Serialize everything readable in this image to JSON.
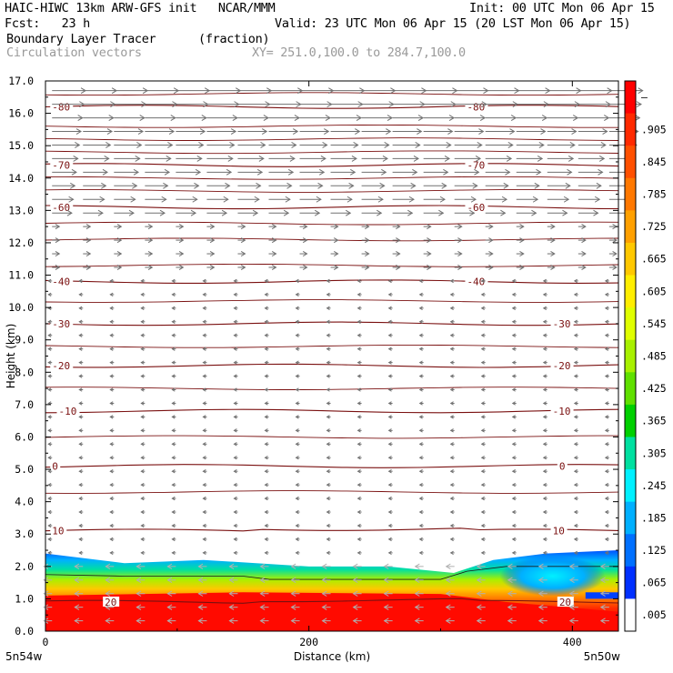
{
  "header": {
    "title": "HAIC-HIWC 13km ARW-GFS init",
    "org": "NCAR/MMM",
    "init": "Init: 00 UTC Mon 06 Apr 15",
    "fcst_label": "Fcst:",
    "fcst_value": "23 h",
    "valid": "Valid: 23 UTC Mon 06 Apr 15 (20 LST Mon 06 Apr 15)",
    "field": "Boundary Layer Tracer",
    "field_units": "(fraction)",
    "vectors": "Circulation vectors",
    "cross_section": "XY= 251.0,100.0 to 284.7,100.0"
  },
  "chart_data": {
    "type": "heatmap",
    "xlabel": "Distance (km)",
    "ylabel": "Height (km)",
    "xlim": [
      0,
      435
    ],
    "ylim": [
      0,
      17
    ],
    "x_ticks": [
      "0",
      "200",
      "400"
    ],
    "x_tick_values": [
      0,
      200,
      400
    ],
    "x_end_labels": [
      "5n54w",
      "5n50w"
    ],
    "y_ticks": [
      "0.0",
      "1.0",
      "2.0",
      "3.0",
      "4.0",
      "5.0",
      "6.0",
      "7.0",
      "8.0",
      "9.0",
      "10.0",
      "11.0",
      "12.0",
      "13.0",
      "14.0",
      "15.0",
      "16.0",
      "17.0"
    ],
    "y_tick_values": [
      0,
      1,
      2,
      3,
      4,
      5,
      6,
      7,
      8,
      9,
      10,
      11,
      12,
      13,
      14,
      15,
      16,
      17
    ],
    "colorbar": {
      "labels": [
        "–",
        ".905",
        ".845",
        ".785",
        ".725",
        ".665",
        ".605",
        ".545",
        ".485",
        ".425",
        ".365",
        ".305",
        ".245",
        ".185",
        ".125",
        ".065",
        ".005"
      ],
      "colors": [
        "#ff0000",
        "#ff2a00",
        "#ff5000",
        "#ff7800",
        "#ffa000",
        "#ffc800",
        "#ffee00",
        "#e0ff00",
        "#a8f000",
        "#60e000",
        "#00d000",
        "#00e0a0",
        "#00f0ff",
        "#00b0ff",
        "#0070ff",
        "#0030ff",
        "#ffffff"
      ]
    },
    "temperature_contours": [
      {
        "label": "-80",
        "height_km": 16.2,
        "label_positions_km": [
          5,
          320
        ]
      },
      {
        "label": "-70",
        "height_km": 14.4,
        "label_positions_km": [
          5,
          320
        ]
      },
      {
        "label": "-60",
        "height_km": 13.1,
        "label_positions_km": [
          5,
          320
        ]
      },
      {
        "label": "-40",
        "height_km": 10.8,
        "label_positions_km": [
          5,
          320
        ]
      },
      {
        "label": "-30",
        "height_km": 9.5,
        "label_positions_km": [
          5,
          385
        ]
      },
      {
        "label": "-20",
        "height_km": 8.2,
        "label_positions_km": [
          5,
          385
        ]
      },
      {
        "label": "-10",
        "height_km": 6.8,
        "label_positions_km": [
          10,
          385
        ]
      },
      {
        "label": "0",
        "height_km": 5.1,
        "label_positions_km": [
          5,
          390
        ]
      },
      {
        "label": "10",
        "height_km": 3.1,
        "label_positions_km": [
          5,
          385
        ]
      },
      {
        "label": "20",
        "height_km": 0.9,
        "label_positions_km": [
          45,
          390
        ]
      }
    ],
    "boundary_layer_top_km": [
      {
        "x": 0,
        "y": 2.4
      },
      {
        "x": 60,
        "y": 2.1
      },
      {
        "x": 120,
        "y": 2.2
      },
      {
        "x": 160,
        "y": 2.1
      },
      {
        "x": 200,
        "y": 2.0
      },
      {
        "x": 260,
        "y": 2.0
      },
      {
        "x": 310,
        "y": 1.8
      },
      {
        "x": 340,
        "y": 2.2
      },
      {
        "x": 380,
        "y": 2.4
      },
      {
        "x": 435,
        "y": 2.5
      }
    ]
  }
}
